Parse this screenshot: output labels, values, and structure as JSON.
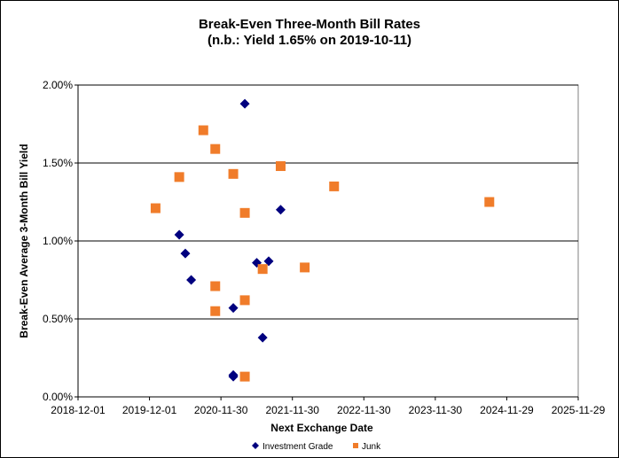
{
  "chart_data": {
    "type": "scatter",
    "title": "Break-Even Three-Month Bill Rates",
    "subtitle": "(n.b.: Yield  1.65% on 2019-10-11)",
    "xlabel": "Next Exchange Date",
    "ylabel": "Break-Even Average 3-Month  Bill Yield",
    "x_ticks": [
      "2018-12-01",
      "2019-12-01",
      "2020-11-30",
      "2021-11-30",
      "2022-11-30",
      "2023-11-30",
      "2024-11-29",
      "2025-11-29"
    ],
    "y_ticks": [
      "0.00%",
      "0.50%",
      "1.00%",
      "1.50%",
      "2.00%"
    ],
    "xlim": [
      "2018-12-01",
      "2025-11-29"
    ],
    "ylim": [
      0,
      2.0
    ],
    "grid": "horizontal",
    "legend_position": "bottom",
    "series": [
      {
        "name": "Investment Grade",
        "color": "#00007f",
        "marker": "diamond",
        "points": [
          {
            "x": "2020-05-01",
            "y": 1.04
          },
          {
            "x": "2020-06-01",
            "y": 0.92
          },
          {
            "x": "2020-07-01",
            "y": 0.75
          },
          {
            "x": "2021-02-01",
            "y": 0.57
          },
          {
            "x": "2021-02-01",
            "y": 0.14
          },
          {
            "x": "2021-02-01",
            "y": 0.13
          },
          {
            "x": "2021-04-01",
            "y": 1.88
          },
          {
            "x": "2021-06-01",
            "y": 0.86
          },
          {
            "x": "2021-07-01",
            "y": 0.38
          },
          {
            "x": "2021-08-01",
            "y": 0.87
          },
          {
            "x": "2021-10-01",
            "y": 1.2
          }
        ]
      },
      {
        "name": "Junk",
        "color": "#f07c2a",
        "marker": "square",
        "points": [
          {
            "x": "2020-01-01",
            "y": 1.21
          },
          {
            "x": "2020-05-01",
            "y": 1.41
          },
          {
            "x": "2020-09-01",
            "y": 1.71
          },
          {
            "x": "2020-11-01",
            "y": 1.59
          },
          {
            "x": "2020-11-01",
            "y": 0.71
          },
          {
            "x": "2020-11-01",
            "y": 0.55
          },
          {
            "x": "2021-02-01",
            "y": 1.43
          },
          {
            "x": "2021-04-01",
            "y": 1.18
          },
          {
            "x": "2021-04-01",
            "y": 0.62
          },
          {
            "x": "2021-04-01",
            "y": 0.13
          },
          {
            "x": "2021-07-01",
            "y": 0.82
          },
          {
            "x": "2021-10-01",
            "y": 1.48
          },
          {
            "x": "2022-02-01",
            "y": 0.83
          },
          {
            "x": "2022-07-01",
            "y": 1.35
          },
          {
            "x": "2024-09-01",
            "y": 1.25
          }
        ]
      }
    ]
  }
}
